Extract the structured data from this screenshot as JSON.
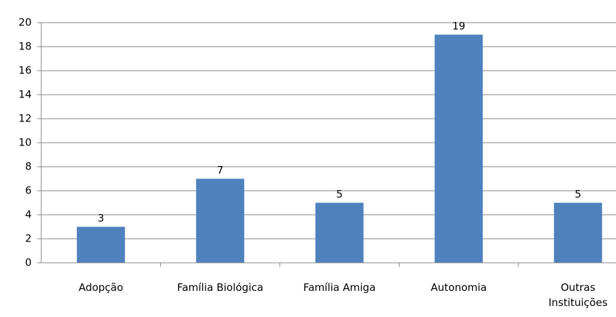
{
  "chart_data": {
    "type": "bar",
    "categories": [
      "Adopção",
      "Família Biológica",
      "Família Amiga",
      "Autonomia",
      "Outras Instituições"
    ],
    "values": [
      3,
      7,
      5,
      19,
      5
    ],
    "color": "#4f81bd",
    "ylim": [
      0,
      20
    ],
    "yticks": [
      0,
      2,
      4,
      6,
      8,
      10,
      12,
      14,
      16,
      18,
      20
    ],
    "grid": true,
    "data_labels": true
  }
}
